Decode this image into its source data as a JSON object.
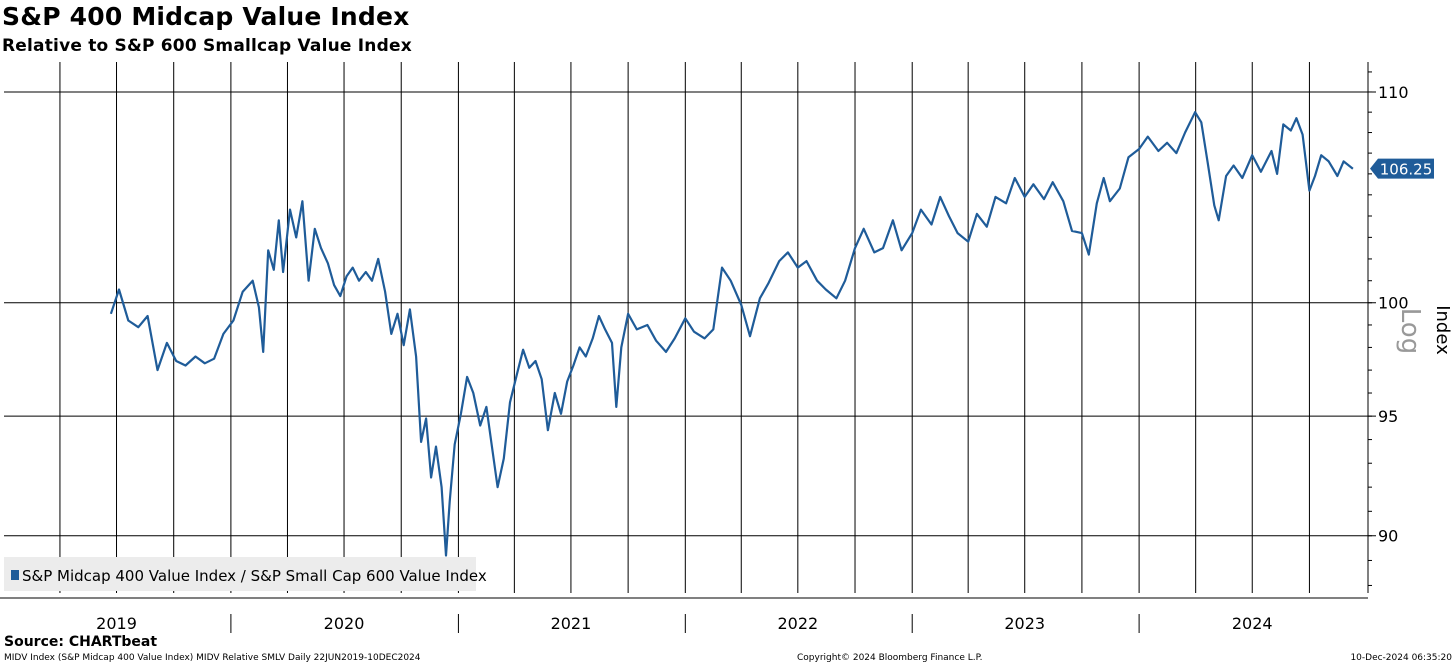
{
  "header": {
    "title": "S&P 400 Midcap Value Index",
    "subtitle": "Relative to S&P 600 Smallcap Value Index"
  },
  "source": "Source: CHARTbeat",
  "footer": {
    "left": "MIDV Index (S&P Midcap 400 Value Index) MIDV Relative SMLV  Daily 22JUN2019-10DEC2024",
    "center": "Copyright© 2024 Bloomberg Finance L.P.",
    "right": "10-Dec-2024 06:35:20"
  },
  "colors": {
    "series": "#1f5c99",
    "last_value_badge": "#1f5c99",
    "grid": "#000000",
    "log_label": "#999999"
  },
  "chart_data": {
    "type": "line",
    "title": "S&P 400 Midcap Value Index",
    "subtitle": "Relative to S&P 600 Smallcap Value Index",
    "ylabel": "Index",
    "scale_label": "Log",
    "y_scale": "log",
    "ylim": [
      87.7,
      111.5
    ],
    "yticks": [
      90,
      95,
      100,
      110
    ],
    "ytick_labels": [
      "90",
      "95",
      "100",
      "110"
    ],
    "xlim": [
      "2019-01-01",
      "2024-12-31"
    ],
    "x_labels": [
      "2019",
      "2020",
      "2021",
      "2022",
      "2023",
      "2024"
    ],
    "grid": true,
    "legend_position": "bottom-left",
    "last_value_label": "106.25",
    "series": [
      {
        "name": "S&P Midcap 400 Value Index / S&P Small Cap 600 Value Index",
        "points": [
          [
            "2019-06-22",
            99.5
          ],
          [
            "2019-07-05",
            100.6
          ],
          [
            "2019-07-20",
            99.2
          ],
          [
            "2019-08-05",
            98.9
          ],
          [
            "2019-08-20",
            99.4
          ],
          [
            "2019-09-05",
            97.0
          ],
          [
            "2019-09-20",
            98.2
          ],
          [
            "2019-10-05",
            97.4
          ],
          [
            "2019-10-20",
            97.2
          ],
          [
            "2019-11-05",
            97.6
          ],
          [
            "2019-11-20",
            97.3
          ],
          [
            "2019-12-05",
            97.5
          ],
          [
            "2019-12-20",
            98.6
          ],
          [
            "2020-01-05",
            99.2
          ],
          [
            "2020-01-20",
            100.5
          ],
          [
            "2020-02-05",
            101.0
          ],
          [
            "2020-02-15",
            99.8
          ],
          [
            "2020-02-22",
            97.8
          ],
          [
            "2020-03-01",
            102.4
          ],
          [
            "2020-03-10",
            101.5
          ],
          [
            "2020-03-18",
            103.8
          ],
          [
            "2020-03-25",
            101.4
          ],
          [
            "2020-04-05",
            104.3
          ],
          [
            "2020-04-15",
            103.0
          ],
          [
            "2020-04-25",
            104.7
          ],
          [
            "2020-05-05",
            101.0
          ],
          [
            "2020-05-15",
            103.4
          ],
          [
            "2020-05-25",
            102.5
          ],
          [
            "2020-06-05",
            101.8
          ],
          [
            "2020-06-15",
            100.8
          ],
          [
            "2020-06-25",
            100.3
          ],
          [
            "2020-07-05",
            101.2
          ],
          [
            "2020-07-15",
            101.6
          ],
          [
            "2020-07-25",
            101.0
          ],
          [
            "2020-08-05",
            101.4
          ],
          [
            "2020-08-15",
            101.0
          ],
          [
            "2020-08-25",
            102.0
          ],
          [
            "2020-09-05",
            100.5
          ],
          [
            "2020-09-15",
            98.6
          ],
          [
            "2020-09-25",
            99.5
          ],
          [
            "2020-10-05",
            98.1
          ],
          [
            "2020-10-15",
            99.7
          ],
          [
            "2020-10-25",
            97.6
          ],
          [
            "2020-11-02",
            93.9
          ],
          [
            "2020-11-10",
            94.9
          ],
          [
            "2020-11-18",
            92.4
          ],
          [
            "2020-11-26",
            93.7
          ],
          [
            "2020-12-05",
            92.0
          ],
          [
            "2020-12-12",
            89.2
          ],
          [
            "2020-12-18",
            91.4
          ],
          [
            "2020-12-26",
            93.8
          ],
          [
            "2021-01-05",
            95.1
          ],
          [
            "2021-01-15",
            96.7
          ],
          [
            "2021-01-25",
            96.0
          ],
          [
            "2021-02-05",
            94.6
          ],
          [
            "2021-02-15",
            95.4
          ],
          [
            "2021-02-25",
            93.5
          ],
          [
            "2021-03-05",
            92.0
          ],
          [
            "2021-03-15",
            93.2
          ],
          [
            "2021-03-25",
            95.6
          ],
          [
            "2021-04-05",
            96.8
          ],
          [
            "2021-04-15",
            97.9
          ],
          [
            "2021-04-25",
            97.1
          ],
          [
            "2021-05-05",
            97.4
          ],
          [
            "2021-05-15",
            96.6
          ],
          [
            "2021-05-25",
            94.4
          ],
          [
            "2021-06-05",
            96.0
          ],
          [
            "2021-06-15",
            95.1
          ],
          [
            "2021-06-25",
            96.5
          ],
          [
            "2021-07-05",
            97.2
          ],
          [
            "2021-07-15",
            98.0
          ],
          [
            "2021-07-25",
            97.6
          ],
          [
            "2021-08-05",
            98.4
          ],
          [
            "2021-08-15",
            99.4
          ],
          [
            "2021-08-25",
            98.8
          ],
          [
            "2021-09-05",
            98.2
          ],
          [
            "2021-09-12",
            95.4
          ],
          [
            "2021-09-20",
            98.0
          ],
          [
            "2021-10-01",
            99.5
          ],
          [
            "2021-10-15",
            98.8
          ],
          [
            "2021-11-01",
            99.0
          ],
          [
            "2021-11-15",
            98.3
          ],
          [
            "2021-12-01",
            97.8
          ],
          [
            "2021-12-15",
            98.4
          ],
          [
            "2022-01-01",
            99.3
          ],
          [
            "2022-01-15",
            98.7
          ],
          [
            "2022-02-01",
            98.4
          ],
          [
            "2022-02-15",
            98.8
          ],
          [
            "2022-03-01",
            101.6
          ],
          [
            "2022-03-15",
            101.0
          ],
          [
            "2022-04-01",
            99.9
          ],
          [
            "2022-04-15",
            98.5
          ],
          [
            "2022-05-01",
            100.2
          ],
          [
            "2022-05-15",
            100.9
          ],
          [
            "2022-06-01",
            101.9
          ],
          [
            "2022-06-15",
            102.3
          ],
          [
            "2022-07-01",
            101.6
          ],
          [
            "2022-07-15",
            101.9
          ],
          [
            "2022-08-01",
            101.0
          ],
          [
            "2022-08-15",
            100.6
          ],
          [
            "2022-09-01",
            100.2
          ],
          [
            "2022-09-15",
            101.0
          ],
          [
            "2022-10-01",
            102.5
          ],
          [
            "2022-10-15",
            103.4
          ],
          [
            "2022-11-01",
            102.3
          ],
          [
            "2022-11-15",
            102.5
          ],
          [
            "2022-12-01",
            103.8
          ],
          [
            "2022-12-15",
            102.4
          ],
          [
            "2023-01-01",
            103.2
          ],
          [
            "2023-01-15",
            104.3
          ],
          [
            "2023-02-01",
            103.6
          ],
          [
            "2023-02-15",
            104.9
          ],
          [
            "2023-03-01",
            104.0
          ],
          [
            "2023-03-15",
            103.2
          ],
          [
            "2023-04-01",
            102.8
          ],
          [
            "2023-04-15",
            104.1
          ],
          [
            "2023-05-01",
            103.5
          ],
          [
            "2023-05-15",
            104.9
          ],
          [
            "2023-06-01",
            104.6
          ],
          [
            "2023-06-15",
            105.8
          ],
          [
            "2023-07-01",
            104.9
          ],
          [
            "2023-07-15",
            105.5
          ],
          [
            "2023-08-01",
            104.8
          ],
          [
            "2023-08-15",
            105.6
          ],
          [
            "2023-09-01",
            104.7
          ],
          [
            "2023-09-15",
            103.3
          ],
          [
            "2023-10-01",
            103.2
          ],
          [
            "2023-10-12",
            102.2
          ],
          [
            "2023-10-25",
            104.6
          ],
          [
            "2023-11-05",
            105.8
          ],
          [
            "2023-11-15",
            104.7
          ],
          [
            "2023-12-01",
            105.3
          ],
          [
            "2023-12-15",
            106.8
          ],
          [
            "2024-01-01",
            107.2
          ],
          [
            "2024-01-15",
            107.8
          ],
          [
            "2024-02-01",
            107.1
          ],
          [
            "2024-02-15",
            107.5
          ],
          [
            "2024-03-01",
            107.0
          ],
          [
            "2024-03-15",
            108.0
          ],
          [
            "2024-03-31",
            109.0
          ],
          [
            "2024-04-10",
            108.5
          ],
          [
            "2024-04-20",
            106.6
          ],
          [
            "2024-05-01",
            104.5
          ],
          [
            "2024-05-08",
            103.8
          ],
          [
            "2024-05-20",
            105.9
          ],
          [
            "2024-06-01",
            106.4
          ],
          [
            "2024-06-15",
            105.8
          ],
          [
            "2024-07-01",
            106.9
          ],
          [
            "2024-07-15",
            106.1
          ],
          [
            "2024-08-01",
            107.1
          ],
          [
            "2024-08-10",
            106.0
          ],
          [
            "2024-08-20",
            108.4
          ],
          [
            "2024-09-01",
            108.1
          ],
          [
            "2024-09-10",
            108.7
          ],
          [
            "2024-09-20",
            107.9
          ],
          [
            "2024-10-01",
            105.2
          ],
          [
            "2024-10-10",
            105.9
          ],
          [
            "2024-10-20",
            106.9
          ],
          [
            "2024-11-01",
            106.6
          ],
          [
            "2024-11-15",
            105.9
          ],
          [
            "2024-11-25",
            106.6
          ],
          [
            "2024-12-10",
            106.25
          ]
        ]
      }
    ]
  }
}
